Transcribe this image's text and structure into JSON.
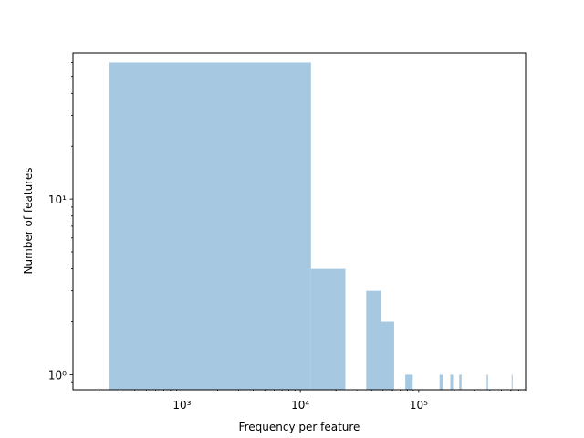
{
  "chart_data": {
    "type": "bar",
    "title": "",
    "xlabel": "Frequency per feature",
    "ylabel": "Number of features",
    "x_scale": "log",
    "y_scale": "log",
    "xlim": [
      120,
      800000
    ],
    "ylim": [
      0.82,
      68
    ],
    "bar_color": "#a6c8e0",
    "grid": false,
    "legend": "none",
    "x_major_ticks": [
      {
        "value": 1000,
        "label": "10³"
      },
      {
        "value": 10000,
        "label": "10⁴"
      },
      {
        "value": 100000,
        "label": "10⁵"
      }
    ],
    "y_major_ticks": [
      {
        "value": 1,
        "label": "10⁰"
      },
      {
        "value": 10,
        "label": "10¹"
      }
    ],
    "bins": [
      {
        "x0": 240,
        "x1": 12300,
        "count": 60
      },
      {
        "x0": 12300,
        "x1": 24000,
        "count": 4
      },
      {
        "x0": 36000,
        "x1": 48000,
        "count": 3
      },
      {
        "x0": 48000,
        "x1": 62000,
        "count": 2
      },
      {
        "x0": 77000,
        "x1": 89000,
        "count": 1
      },
      {
        "x0": 150000,
        "x1": 160000,
        "count": 1
      },
      {
        "x0": 185000,
        "x1": 195000,
        "count": 1
      },
      {
        "x0": 220000,
        "x1": 230000,
        "count": 1
      },
      {
        "x0": 375000,
        "x1": 385000,
        "count": 1
      },
      {
        "x0": 610000,
        "x1": 615000,
        "count": 1
      }
    ]
  }
}
